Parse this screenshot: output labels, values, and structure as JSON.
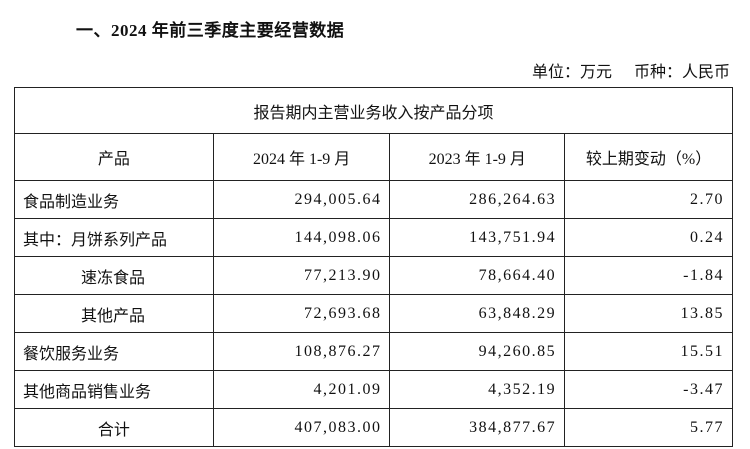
{
  "header": {
    "title": "一、2024 年前三季度主要经营数据",
    "unit": "单位：万元",
    "currency": "币种：人民币"
  },
  "table": {
    "caption": "报告期内主营业务收入按产品分项",
    "columns": [
      "产品",
      "2024 年 1-9 月",
      "2023 年 1-9 月",
      "较上期变动（%）"
    ],
    "rows": [
      [
        "食品制造业务",
        "294,005.64",
        "286,264.63",
        "2.70"
      ],
      [
        "其中：月饼系列产品",
        "144,098.06",
        "143,751.94",
        "0.24"
      ],
      [
        "速冻食品",
        "77,213.90",
        "78,664.40",
        "-1.84"
      ],
      [
        "其他产品",
        "72,693.68",
        "63,848.29",
        "13.85"
      ],
      [
        "餐饮服务业务",
        "108,876.27",
        "94,260.85",
        "15.51"
      ],
      [
        "其他商品销售业务",
        "4,201.09",
        "4,352.19",
        "-3.47"
      ],
      [
        "合计",
        "407,083.00",
        "384,877.67",
        "5.77"
      ]
    ]
  }
}
